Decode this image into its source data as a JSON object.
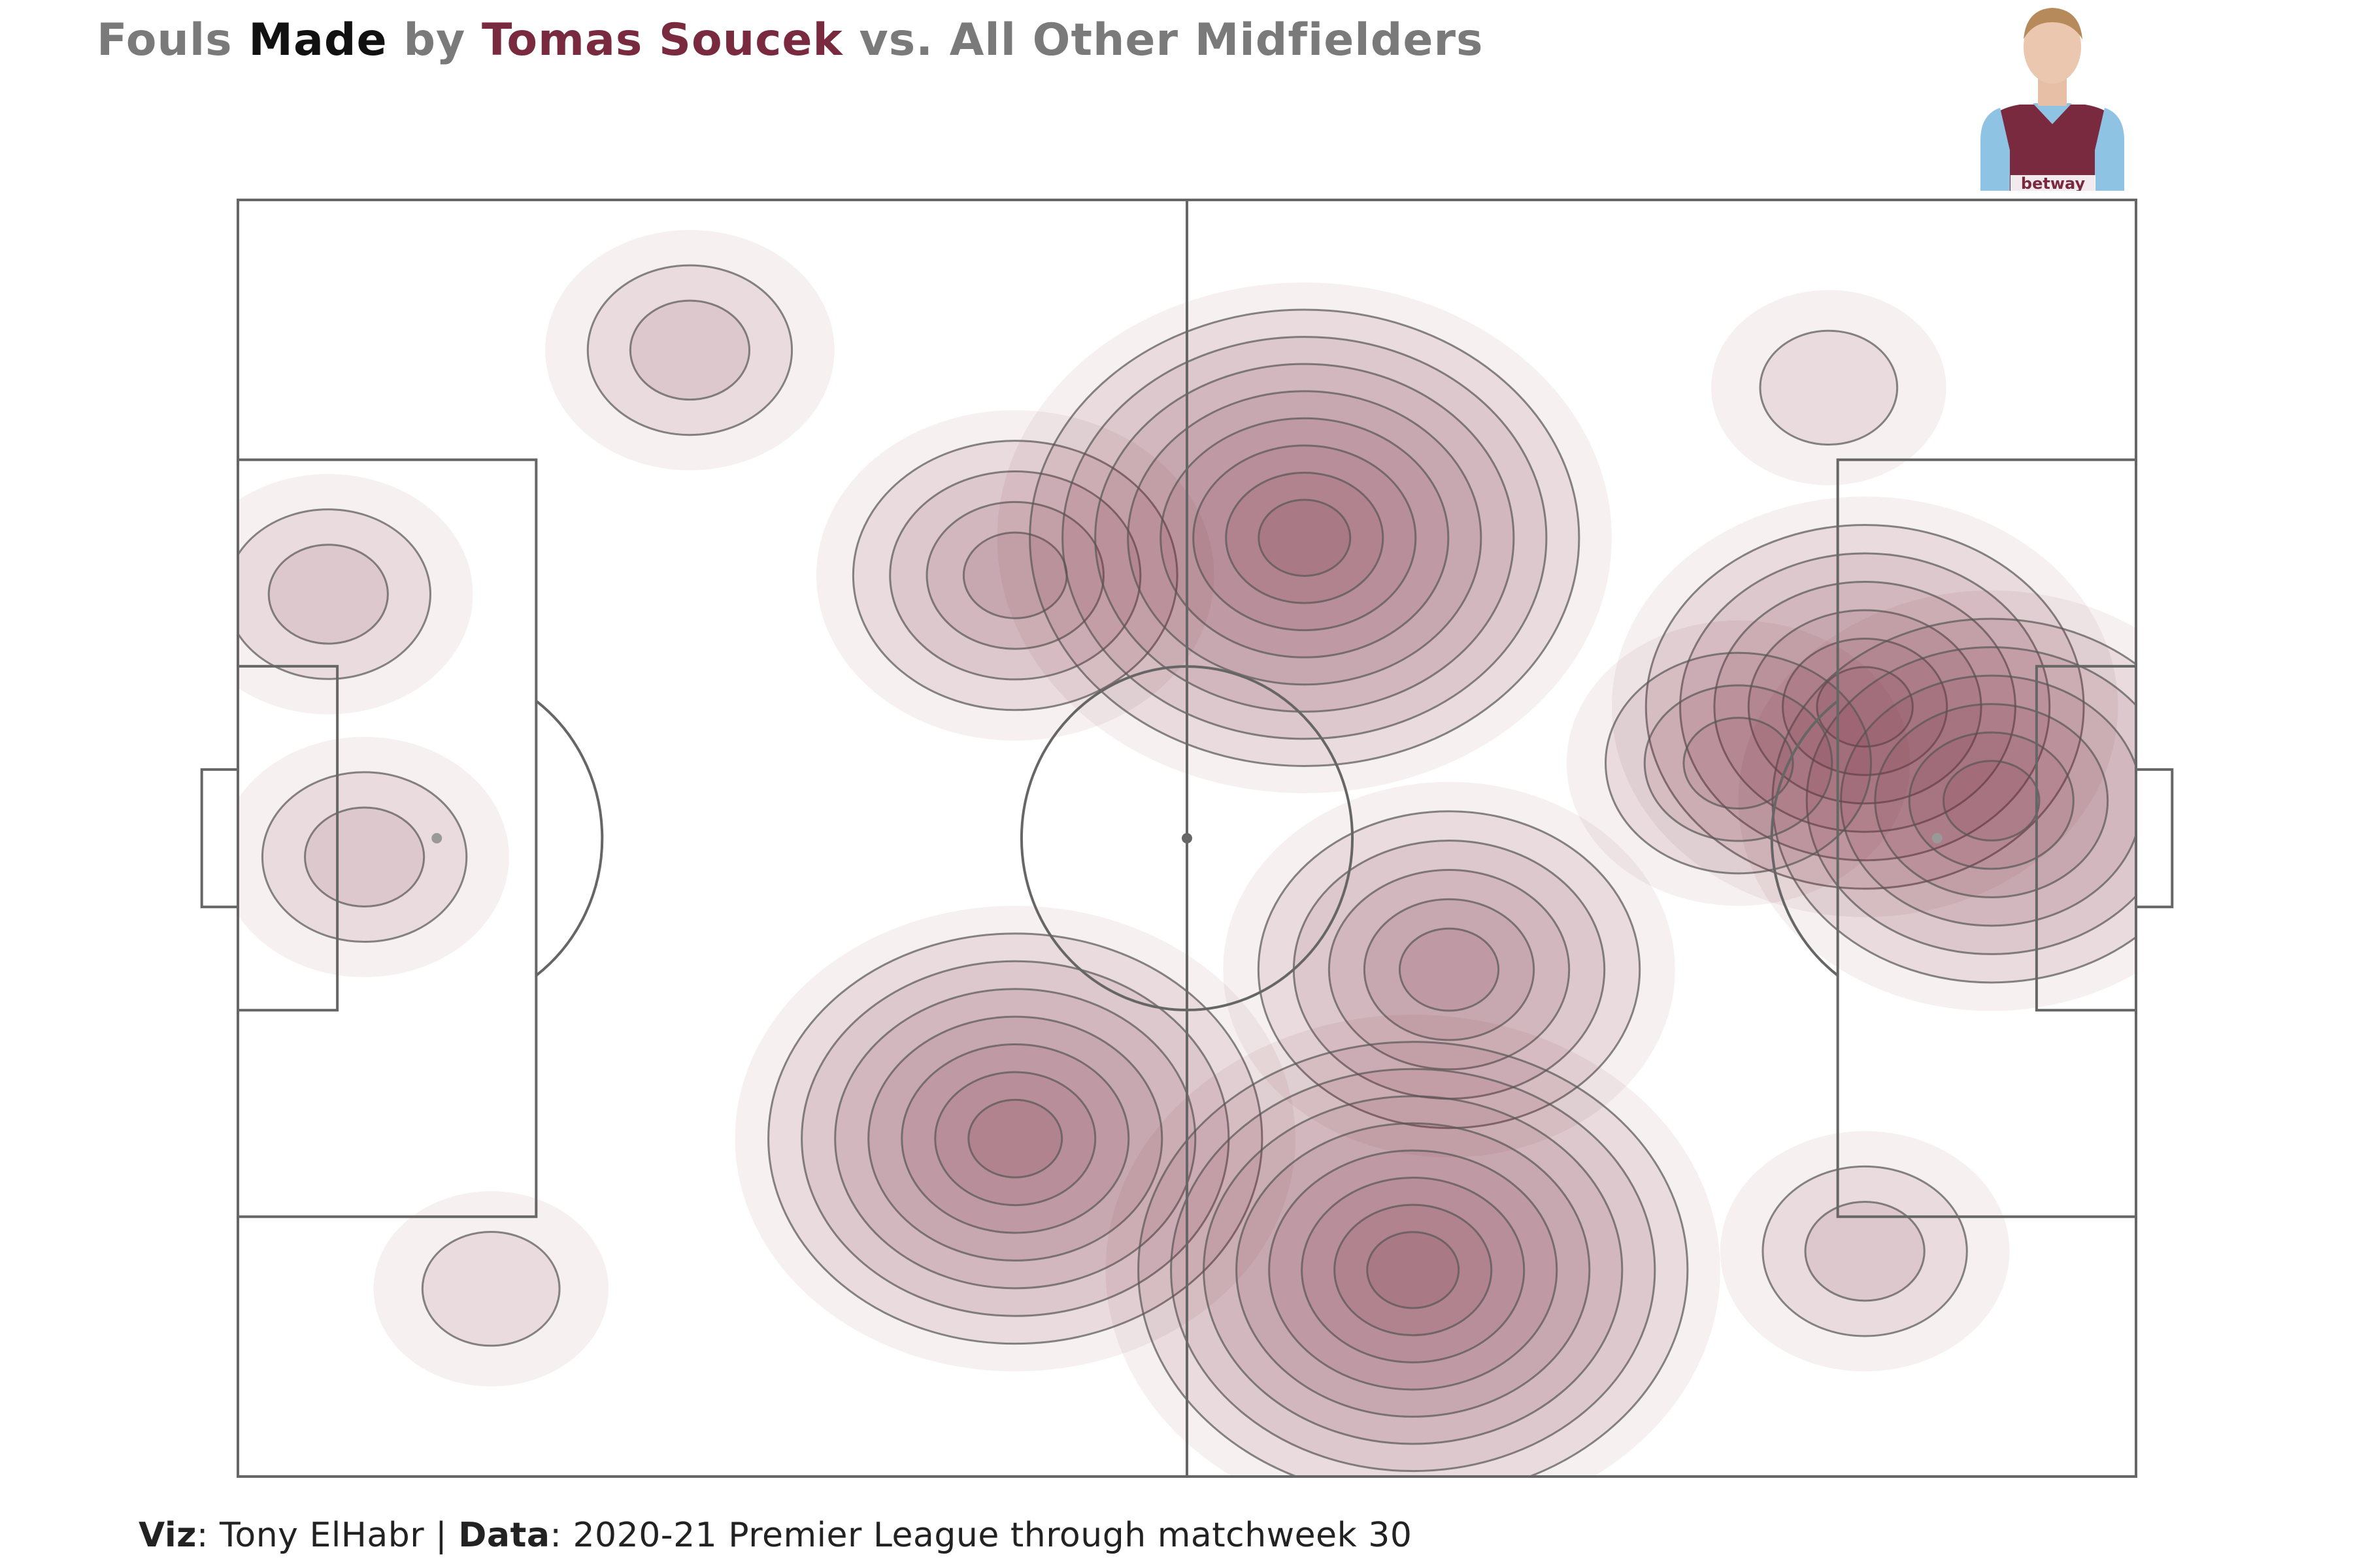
{
  "title": {
    "w1": "Fouls",
    "w2": "Made",
    "w3": "by",
    "player": "Tomas Soucek",
    "w4": "vs. All Other Midfielders"
  },
  "caption": {
    "viz_label": "Viz",
    "viz_value": ": Tony ElHabr | ",
    "data_label": "Data",
    "data_value": ": 2020-21 Premier League through matchweek 30"
  },
  "colors": {
    "fill": "#7a2a3e",
    "line": "#555555",
    "pitch": "#666666",
    "player_accent": "#7a2a3e"
  },
  "avatar": {
    "icon": "player-photo-icon",
    "shirt_text": "betway"
  },
  "chart_data": {
    "type": "heatmap",
    "description_kind": "density contour difference on football pitch",
    "x_range": [
      0,
      105
    ],
    "y_range": [
      0,
      68
    ],
    "hotspots": [
      {
        "x": 5,
        "y": 47,
        "levels": 2
      },
      {
        "x": 7,
        "y": 33,
        "levels": 2
      },
      {
        "x": 25,
        "y": 60,
        "levels": 2
      },
      {
        "x": 14,
        "y": 10,
        "levels": 1
      },
      {
        "x": 43,
        "y": 48,
        "levels": 4
      },
      {
        "x": 59,
        "y": 50,
        "levels": 8
      },
      {
        "x": 43,
        "y": 18,
        "levels": 7
      },
      {
        "x": 67,
        "y": 27,
        "levels": 5
      },
      {
        "x": 65,
        "y": 11,
        "levels": 8
      },
      {
        "x": 90,
        "y": 41,
        "levels": 6
      },
      {
        "x": 97,
        "y": 36,
        "levels": 6
      },
      {
        "x": 83,
        "y": 38,
        "levels": 3
      },
      {
        "x": 90,
        "y": 12,
        "levels": 2
      },
      {
        "x": 88,
        "y": 58,
        "levels": 1
      }
    ]
  }
}
